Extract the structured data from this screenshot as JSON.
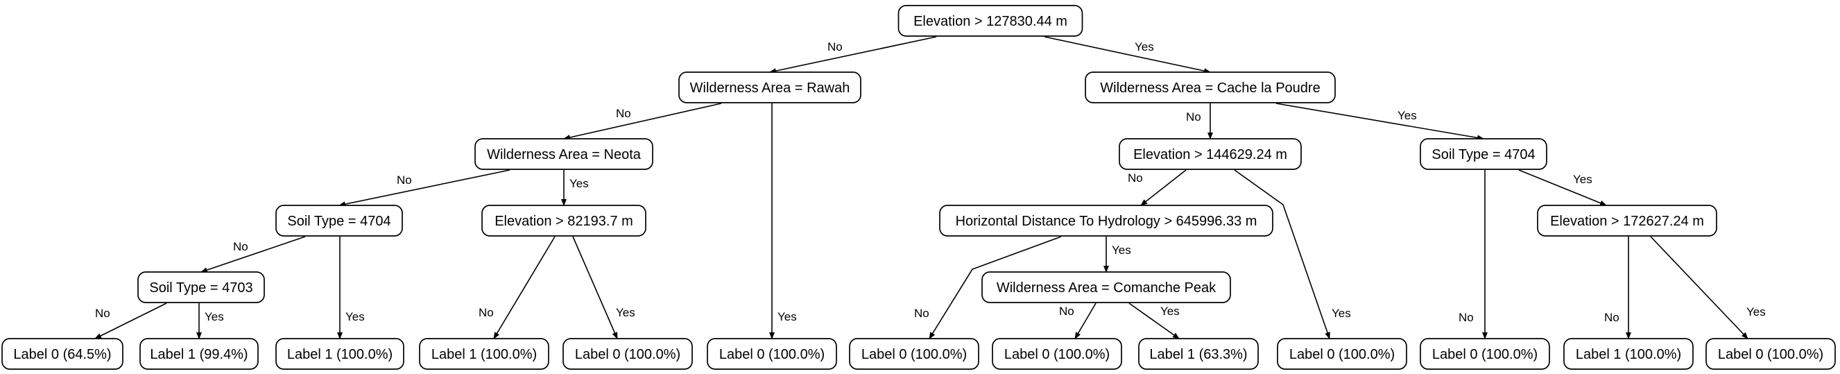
{
  "tree": {
    "nodes": [
      {
        "id": "root",
        "label": "Elevation > 127830.44 m"
      },
      {
        "id": "rawah",
        "label": "Wilderness Area = Rawah"
      },
      {
        "id": "cache",
        "label": "Wilderness Area = Cache la Poudre"
      },
      {
        "id": "neota",
        "label": "Wilderness Area = Neota"
      },
      {
        "id": "elev144",
        "label": "Elevation > 144629.24 m"
      },
      {
        "id": "soil4704b",
        "label": "Soil Type = 4704"
      },
      {
        "id": "soil4704a",
        "label": "Soil Type = 4704"
      },
      {
        "id": "elev82",
        "label": "Elevation > 82193.7 m"
      },
      {
        "id": "hdist",
        "label": "Horizontal Distance To Hydrology > 645996.33 m"
      },
      {
        "id": "elev172",
        "label": "Elevation > 172627.24 m"
      },
      {
        "id": "soil4703",
        "label": "Soil Type = 4703"
      },
      {
        "id": "comanche",
        "label": "Wilderness Area = Comanche Peak"
      },
      {
        "id": "leaf1",
        "label": "Label 0 (64.5%)"
      },
      {
        "id": "leaf2",
        "label": "Label 1 (99.4%)"
      },
      {
        "id": "leaf3",
        "label": "Label 1 (100.0%)"
      },
      {
        "id": "leaf4",
        "label": "Label 1 (100.0%)"
      },
      {
        "id": "leaf5",
        "label": "Label 0 (100.0%)"
      },
      {
        "id": "leaf6",
        "label": "Label 0 (100.0%)"
      },
      {
        "id": "leaf7",
        "label": "Label 0 (100.0%)"
      },
      {
        "id": "leaf8",
        "label": "Label 0 (100.0%)"
      },
      {
        "id": "leaf9",
        "label": "Label 1 (63.3%)"
      },
      {
        "id": "leaf10",
        "label": "Label 0 (100.0%)"
      },
      {
        "id": "leaf11",
        "label": "Label 0 (100.0%)"
      },
      {
        "id": "leaf12",
        "label": "Label 1 (100.0%)"
      },
      {
        "id": "leaf13",
        "label": "Label 0 (100.0%)"
      }
    ],
    "edges": [
      {
        "from": "root",
        "to": "rawah",
        "label": "No"
      },
      {
        "from": "root",
        "to": "cache",
        "label": "Yes"
      },
      {
        "from": "rawah",
        "to": "neota",
        "label": "No"
      },
      {
        "from": "rawah",
        "to": "leaf6",
        "label": "Yes"
      },
      {
        "from": "neota",
        "to": "soil4704a",
        "label": "No"
      },
      {
        "from": "neota",
        "to": "elev82",
        "label": "Yes"
      },
      {
        "from": "soil4704a",
        "to": "soil4703",
        "label": "No"
      },
      {
        "from": "soil4704a",
        "to": "leaf3",
        "label": "Yes"
      },
      {
        "from": "soil4703",
        "to": "leaf1",
        "label": "No"
      },
      {
        "from": "soil4703",
        "to": "leaf2",
        "label": "Yes"
      },
      {
        "from": "elev82",
        "to": "leaf4",
        "label": "No"
      },
      {
        "from": "elev82",
        "to": "leaf5",
        "label": "Yes"
      },
      {
        "from": "cache",
        "to": "elev144",
        "label": "No"
      },
      {
        "from": "cache",
        "to": "soil4704b",
        "label": "Yes"
      },
      {
        "from": "elev144",
        "to": "hdist",
        "label": "No"
      },
      {
        "from": "elev144",
        "to": "leaf10",
        "label": "Yes"
      },
      {
        "from": "hdist",
        "to": "leaf7",
        "label": "No"
      },
      {
        "from": "hdist",
        "to": "comanche",
        "label": "Yes"
      },
      {
        "from": "comanche",
        "to": "leaf8",
        "label": "No"
      },
      {
        "from": "comanche",
        "to": "leaf9",
        "label": "Yes"
      },
      {
        "from": "soil4704b",
        "to": "leaf11",
        "label": "No"
      },
      {
        "from": "soil4704b",
        "to": "elev172",
        "label": "Yes"
      },
      {
        "from": "elev172",
        "to": "leaf12",
        "label": "No"
      },
      {
        "from": "elev172",
        "to": "leaf13",
        "label": "Yes"
      }
    ]
  }
}
